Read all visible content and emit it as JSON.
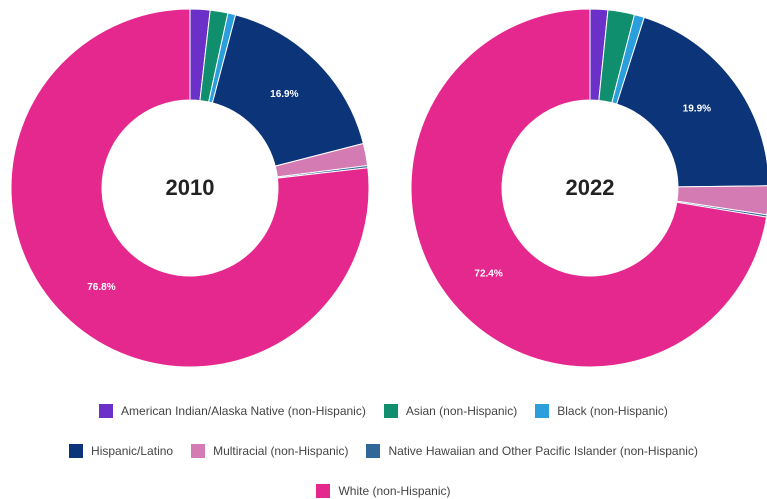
{
  "chart_data": [
    {
      "type": "pie",
      "title": "2010",
      "categories": [
        "American Indian/Alaska Native (non-Hispanic)",
        "Asian (non-Hispanic)",
        "Black (non-Hispanic)",
        "Hispanic/Latino",
        "Multiracial (non-Hispanic)",
        "Native Hawaiian and Other Pacific Islander (non-Hispanic)",
        "White (non-Hispanic)"
      ],
      "values": [
        1.8,
        1.6,
        0.7,
        16.9,
        2.0,
        0.2,
        76.8
      ],
      "value_labels": [
        null,
        null,
        null,
        "16.9%",
        null,
        null,
        "76.8%"
      ],
      "colors": [
        "#6a30c8",
        "#0f8f6e",
        "#2b9fdc",
        "#0c3479",
        "#d47bb4",
        "#2f6799",
        "#e5288d"
      ]
    },
    {
      "type": "pie",
      "title": "2022",
      "categories": [
        "American Indian/Alaska Native (non-Hispanic)",
        "Asian (non-Hispanic)",
        "Black (non-Hispanic)",
        "Hispanic/Latino",
        "Multiracial (non-Hispanic)",
        "Native Hawaiian and Other Pacific Islander (non-Hispanic)",
        "White (non-Hispanic)"
      ],
      "values": [
        1.6,
        2.4,
        0.9,
        19.9,
        2.6,
        0.2,
        72.4
      ],
      "value_labels": [
        null,
        null,
        null,
        "19.9%",
        null,
        null,
        "72.4%"
      ],
      "colors": [
        "#6a30c8",
        "#0f8f6e",
        "#2b9fdc",
        "#0c3479",
        "#d47bb4",
        "#2f6799",
        "#e5288d"
      ]
    }
  ]
}
